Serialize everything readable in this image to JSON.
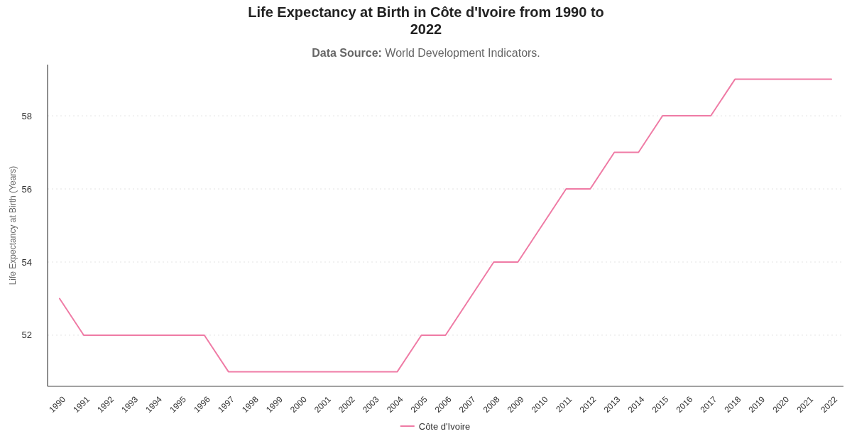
{
  "chart_data": {
    "type": "line",
    "title": "Life Expectancy at Birth in Côte d'Ivoire from 1990 to 2022",
    "subtitle": "Data Source: World Development Indicators.",
    "ylabel": "Life Expectancy at Birth (Years)",
    "categories": [
      "1990",
      "1991",
      "1992",
      "1993",
      "1994",
      "1995",
      "1996",
      "1997",
      "1998",
      "1999",
      "2000",
      "2001",
      "2002",
      "2003",
      "2004",
      "2005",
      "2006",
      "2007",
      "2008",
      "2009",
      "2010",
      "2011",
      "2012",
      "2013",
      "2014",
      "2015",
      "2016",
      "2017",
      "2018",
      "2019",
      "2020",
      "2021",
      "2022"
    ],
    "series": [
      {
        "name": "Côte d'Ivoire",
        "color": "#ef7ba5",
        "values": [
          53,
          52,
          52,
          52,
          52,
          52,
          52,
          51,
          51,
          51,
          51,
          51,
          51,
          51,
          51,
          52,
          52,
          53,
          54,
          54,
          55,
          56,
          56,
          57,
          57,
          58,
          58,
          58,
          59,
          59,
          59,
          59,
          59
        ]
      }
    ],
    "ylim": [
      50.6,
      59.4
    ],
    "yticks": [
      52,
      54,
      56,
      58
    ],
    "grid": "y",
    "legend": "bottom",
    "marker": "none",
    "line_style": "solid"
  }
}
